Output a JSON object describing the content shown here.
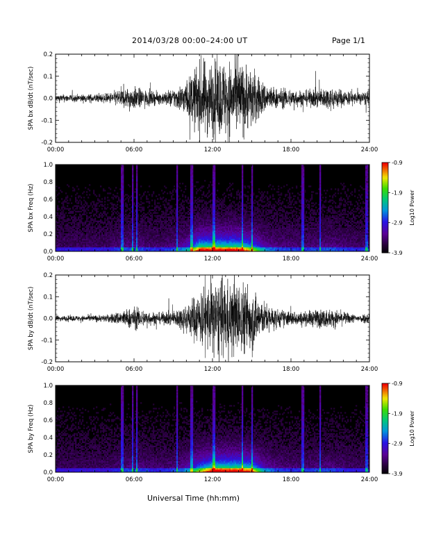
{
  "header": {
    "date_range": "2014/03/28   00:00–24:00 UT",
    "page": "Page 1/1"
  },
  "chart_data": [
    {
      "type": "line",
      "panel": "bx-waveform",
      "ylabel": "SPA bx dB/dt (nT/sec)",
      "ylim": [
        -0.2,
        0.2
      ],
      "yticks": [
        "0.2",
        "0.1",
        "0.0",
        "-0.1",
        "-0.2"
      ],
      "xticks": [
        "00:00",
        "06:00",
        "12:00",
        "18:00",
        "24:00"
      ],
      "x_hours": [
        0,
        2,
        4,
        5,
        6,
        7,
        8,
        9,
        10,
        11,
        12,
        13,
        14,
        15,
        16,
        17,
        18,
        19,
        20,
        21,
        22,
        23,
        24
      ],
      "amplitude": [
        0.02,
        0.02,
        0.025,
        0.05,
        0.06,
        0.04,
        0.03,
        0.05,
        0.09,
        0.2,
        0.2,
        0.2,
        0.2,
        0.16,
        0.08,
        0.05,
        0.05,
        0.04,
        0.05,
        0.06,
        0.045,
        0.03,
        0.04
      ]
    },
    {
      "type": "heatmap",
      "panel": "bx-spectrogram",
      "ylabel": "SPA bx Freq (Hz)",
      "ylim": [
        0.0,
        1.0
      ],
      "yticks": [
        "1.0",
        "0.8",
        "0.6",
        "0.4",
        "0.2",
        "0.0"
      ],
      "xticks": [
        "00:00",
        "06:00",
        "12:00",
        "18:00",
        "24:00"
      ],
      "colorbar": {
        "label": "Log10 Power",
        "ticks": [
          "-0.9",
          "-1.9",
          "-2.9",
          "-3.9"
        ],
        "range": [
          -3.9,
          -0.9
        ]
      }
    },
    {
      "type": "line",
      "panel": "by-waveform",
      "ylabel": "SPA by dB/dt (nT/sec)",
      "ylim": [
        -0.2,
        0.2
      ],
      "yticks": [
        "0.2",
        "0.1",
        "0.0",
        "-0.1",
        "-0.2"
      ],
      "xticks": [
        "00:00",
        "06:00",
        "12:00",
        "18:00",
        "24:00"
      ],
      "x_hours": [
        0,
        2,
        4,
        5,
        6,
        7,
        8,
        9,
        10,
        11,
        12,
        13,
        14,
        15,
        16,
        17,
        18,
        19,
        20,
        21,
        22,
        23,
        24
      ],
      "amplitude": [
        0.015,
        0.015,
        0.02,
        0.04,
        0.06,
        0.04,
        0.03,
        0.04,
        0.08,
        0.15,
        0.2,
        0.2,
        0.2,
        0.18,
        0.08,
        0.05,
        0.04,
        0.035,
        0.05,
        0.05,
        0.035,
        0.02,
        0.03
      ]
    },
    {
      "type": "heatmap",
      "panel": "by-spectrogram",
      "ylabel": "SPA by Freq (Hz)",
      "ylim": [
        0.0,
        1.0
      ],
      "yticks": [
        "1.0",
        "0.8",
        "0.6",
        "0.4",
        "0.2",
        "0.0"
      ],
      "xticks": [
        "00:00",
        "06:00",
        "12:00",
        "18:00",
        "24:00"
      ],
      "colorbar": {
        "label": "Log10 Power",
        "ticks": [
          "-0.9",
          "-1.9",
          "-2.9",
          "-3.9"
        ],
        "range": [
          -3.9,
          -0.9
        ]
      }
    }
  ],
  "footer": {
    "xlabel": "Universal Time (hh:mm)"
  }
}
